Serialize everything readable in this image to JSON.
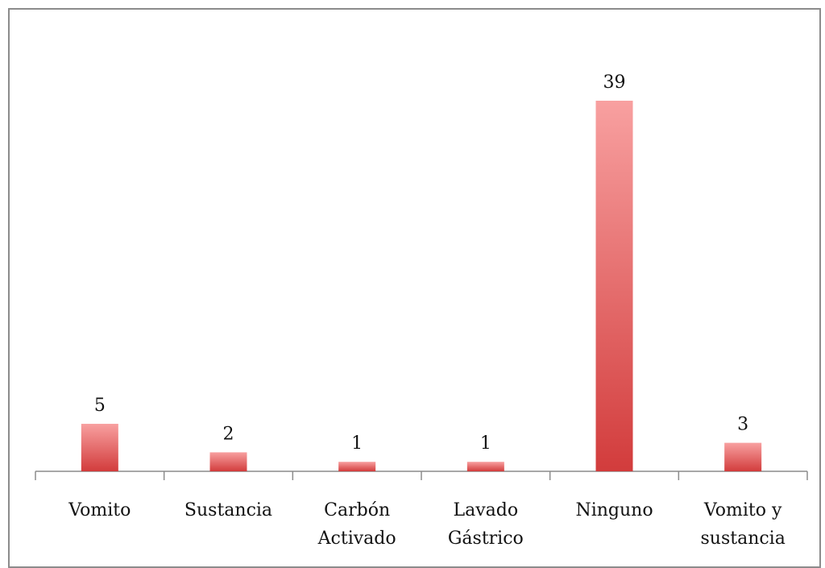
{
  "chart_data": {
    "type": "bar",
    "title": "",
    "xlabel": "",
    "ylabel": "",
    "categories": [
      [
        "Vomito"
      ],
      [
        "Sustancia"
      ],
      [
        "Carbón",
        "Activado"
      ],
      [
        "Lavado",
        "Gástrico"
      ],
      [
        "Ninguno"
      ],
      [
        "Vomito y",
        "sustancia"
      ]
    ],
    "values": [
      5,
      2,
      1,
      1,
      39,
      3
    ],
    "data_labels": [
      "5",
      "2",
      "1",
      "1",
      "39",
      "3"
    ],
    "ylim": [
      0,
      39
    ],
    "grid": false,
    "legend": "none",
    "y_axis_visible": false,
    "colors": {
      "bar_top": "#f8a0a0",
      "bar_bottom": "#d23c3c",
      "axis": "#8c8c8c",
      "frame": "#8c8c8c"
    }
  }
}
